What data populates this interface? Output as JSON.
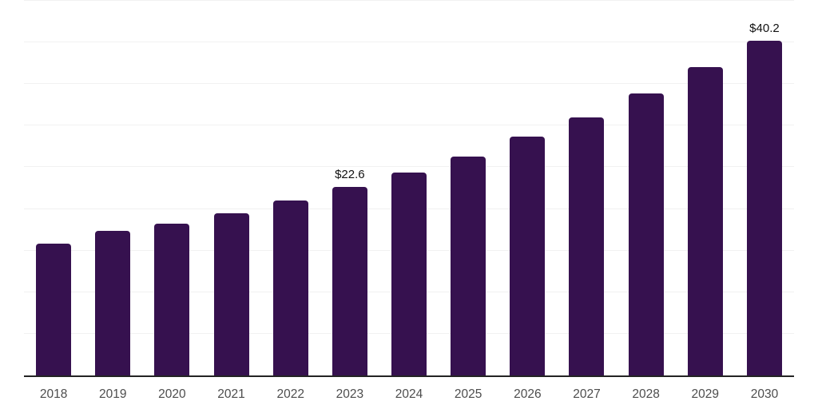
{
  "chart_data": {
    "type": "bar",
    "title": "",
    "xlabel": "",
    "ylabel": "",
    "categories": [
      "2018",
      "2019",
      "2020",
      "2021",
      "2022",
      "2023",
      "2024",
      "2025",
      "2026",
      "2027",
      "2028",
      "2029",
      "2030"
    ],
    "values": [
      15.8,
      17.4,
      18.2,
      19.5,
      21.0,
      22.6,
      24.4,
      26.3,
      28.7,
      31.0,
      33.9,
      37.0,
      40.2
    ],
    "data_labels": [
      "",
      "",
      "",
      "",
      "",
      "$22.6",
      "",
      "",
      "",
      "",
      "",
      "",
      "$40.2"
    ],
    "ylim": [
      0,
      45
    ],
    "gridline_step": 5,
    "grid": "horizontal",
    "legend": "none",
    "y_axis_tick_labels_visible": false,
    "colors": {
      "bar": "#36114F",
      "gridline": "#F1F1F1",
      "axis_line": "#242424",
      "tick_label": "#4D4D4D",
      "data_label": "#111111"
    }
  }
}
